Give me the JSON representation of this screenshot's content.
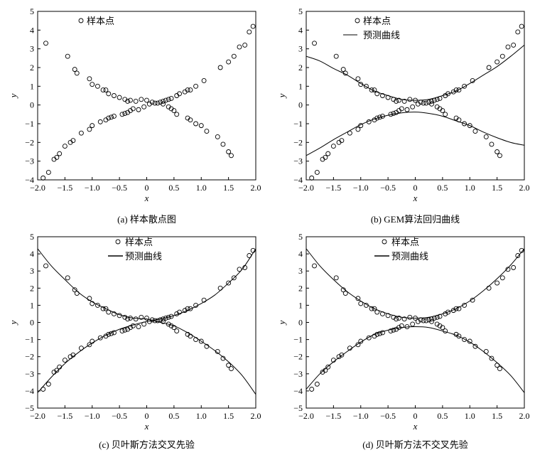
{
  "chart_data": [
    {
      "type": "scatter",
      "caption": "(a) 样本散点图",
      "xlabel": "x",
      "ylabel": "y",
      "xlim": [
        -2,
        2
      ],
      "ylim": [
        -4,
        5
      ],
      "xticks": [
        "−2.0",
        "−1.5",
        "−1.0",
        "−0.5",
        "0",
        "0.5",
        "1.0",
        "1.5",
        "2.0"
      ],
      "yticks": [
        "−4",
        "−3",
        "−2",
        "−1",
        "0",
        "1",
        "2",
        "3",
        "4",
        "5"
      ],
      "grid": false,
      "legend_position": "top-left",
      "legend": [
        {
          "name": "样本点",
          "marker": "circle"
        }
      ],
      "series": [
        {
          "name": "样本点",
          "style": "points",
          "x": [
            -1.9,
            -1.8,
            -1.7,
            -1.65,
            -1.6,
            -1.5,
            -1.4,
            -1.35,
            -1.2,
            -1.05,
            -1.0,
            -0.85,
            -0.75,
            -0.7,
            -0.65,
            -0.6,
            -0.45,
            -0.4,
            -0.35,
            -0.3,
            -0.25,
            -0.15,
            -0.05,
            0.05,
            0.15,
            0.25,
            0.3,
            0.35,
            0.4,
            0.45,
            0.55,
            0.6,
            0.7,
            0.75,
            0.8,
            0.9,
            1.05,
            1.35,
            1.5,
            1.6,
            1.7,
            1.8,
            1.88,
            1.95,
            -1.85,
            -1.45,
            -1.32,
            -1.28,
            -1.05,
            -1.0,
            -0.9,
            -0.8,
            -0.75,
            -0.7,
            -0.6,
            -0.5,
            -0.4,
            -0.35,
            -0.3,
            -0.2,
            -0.1,
            0.0,
            0.1,
            0.2,
            0.3,
            0.4,
            0.45,
            0.5,
            0.55,
            0.75,
            0.8,
            0.9,
            1.0,
            1.1,
            1.3,
            1.4,
            1.5,
            1.55
          ],
          "y": [
            -3.9,
            -3.6,
            -2.9,
            -2.8,
            -2.6,
            -2.2,
            -2.0,
            -1.9,
            -1.5,
            -1.3,
            -1.1,
            -0.9,
            -0.8,
            -0.7,
            -0.65,
            -0.6,
            -0.5,
            -0.45,
            -0.4,
            -0.3,
            -0.2,
            -0.25,
            -0.1,
            0.05,
            0.1,
            0.15,
            0.2,
            0.25,
            0.3,
            0.35,
            0.5,
            0.6,
            0.7,
            0.8,
            0.8,
            1.0,
            1.3,
            2.0,
            2.3,
            2.6,
            3.1,
            3.2,
            3.9,
            4.2,
            3.3,
            2.6,
            1.9,
            1.7,
            1.4,
            1.1,
            1.0,
            0.8,
            0.8,
            0.6,
            0.5,
            0.4,
            0.3,
            0.2,
            0.25,
            0.2,
            0.3,
            0.25,
            0.15,
            0.1,
            0.05,
            -0.1,
            -0.2,
            -0.3,
            -0.5,
            -0.7,
            -0.8,
            -1.0,
            -1.1,
            -1.4,
            -1.7,
            -2.1,
            -2.5,
            -2.7
          ]
        }
      ]
    },
    {
      "type": "scatter",
      "caption": "(b) GEM算法回归曲线",
      "xlabel": "x",
      "ylabel": "y",
      "xlim": [
        -2,
        2
      ],
      "ylim": [
        -4,
        5
      ],
      "xticks": [
        "−2.0",
        "−1.5",
        "−1.0",
        "−0.5",
        "0",
        "0.5",
        "1.0",
        "1.5",
        "2.0"
      ],
      "yticks": [
        "−4",
        "−3",
        "−2",
        "−1",
        "0",
        "1",
        "2",
        "3",
        "4",
        "5"
      ],
      "grid": false,
      "legend_position": "top-left",
      "legend": [
        {
          "name": "样本点",
          "marker": "circle"
        },
        {
          "name": "预测曲线",
          "marker": "line"
        }
      ],
      "series": [
        {
          "name": "样本点",
          "style": "points",
          "x": [
            -1.9,
            -1.8,
            -1.7,
            -1.65,
            -1.6,
            -1.5,
            -1.4,
            -1.35,
            -1.2,
            -1.05,
            -1.0,
            -0.85,
            -0.75,
            -0.7,
            -0.65,
            -0.6,
            -0.45,
            -0.4,
            -0.35,
            -0.3,
            -0.25,
            -0.15,
            -0.05,
            0.05,
            0.15,
            0.25,
            0.3,
            0.35,
            0.4,
            0.45,
            0.55,
            0.6,
            0.7,
            0.75,
            0.8,
            0.9,
            1.05,
            1.35,
            1.5,
            1.6,
            1.7,
            1.8,
            1.88,
            1.95,
            -1.85,
            -1.45,
            -1.32,
            -1.28,
            -1.05,
            -1.0,
            -0.9,
            -0.8,
            -0.75,
            -0.7,
            -0.6,
            -0.5,
            -0.4,
            -0.35,
            -0.3,
            -0.2,
            -0.1,
            0.0,
            0.1,
            0.2,
            0.3,
            0.4,
            0.45,
            0.5,
            0.55,
            0.75,
            0.8,
            0.9,
            1.0,
            1.1,
            1.3,
            1.4,
            1.5,
            1.55
          ],
          "y": [
            -3.9,
            -3.6,
            -2.9,
            -2.8,
            -2.6,
            -2.2,
            -2.0,
            -1.9,
            -1.5,
            -1.3,
            -1.1,
            -0.9,
            -0.8,
            -0.7,
            -0.65,
            -0.6,
            -0.5,
            -0.45,
            -0.4,
            -0.3,
            -0.2,
            -0.25,
            -0.1,
            0.05,
            0.1,
            0.15,
            0.2,
            0.25,
            0.3,
            0.35,
            0.5,
            0.6,
            0.7,
            0.8,
            0.8,
            1.0,
            1.3,
            2.0,
            2.3,
            2.6,
            3.1,
            3.2,
            3.9,
            4.2,
            3.3,
            2.6,
            1.9,
            1.7,
            1.4,
            1.1,
            1.0,
            0.8,
            0.8,
            0.6,
            0.5,
            0.4,
            0.3,
            0.2,
            0.25,
            0.2,
            0.3,
            0.25,
            0.15,
            0.1,
            0.05,
            -0.1,
            -0.2,
            -0.3,
            -0.5,
            -0.7,
            -0.8,
            -1.0,
            -1.1,
            -1.4,
            -1.7,
            -2.1,
            -2.5,
            -2.7
          ]
        },
        {
          "name": "预测曲线",
          "style": "line",
          "x": [
            -2.0,
            -1.75,
            -1.5,
            -1.25,
            -1.0,
            -0.75,
            -0.5,
            -0.25,
            0.0,
            0.25,
            0.5,
            0.75,
            1.0,
            1.25,
            1.5,
            1.75,
            2.0
          ],
          "y": [
            2.6,
            2.35,
            1.95,
            1.6,
            1.15,
            0.75,
            0.5,
            0.3,
            0.25,
            0.3,
            0.5,
            0.75,
            1.15,
            1.6,
            2.05,
            2.6,
            3.2
          ]
        },
        {
          "name": "预测曲线",
          "style": "line",
          "x": [
            -2.0,
            -1.75,
            -1.5,
            -1.25,
            -1.0,
            -0.75,
            -0.5,
            -0.25,
            0.0,
            0.25,
            0.5,
            0.75,
            1.0,
            1.25,
            1.5,
            1.75,
            2.0
          ],
          "y": [
            -2.7,
            -2.3,
            -1.85,
            -1.45,
            -1.05,
            -0.75,
            -0.55,
            -0.42,
            -0.38,
            -0.45,
            -0.6,
            -0.85,
            -1.1,
            -1.45,
            -1.75,
            -2.0,
            -2.15
          ]
        }
      ]
    },
    {
      "type": "scatter",
      "caption": "(c) 贝叶斯方法交叉先验",
      "xlabel": "x",
      "ylabel": "y",
      "xlim": [
        -2,
        2
      ],
      "ylim": [
        -5,
        5
      ],
      "xticks": [
        "−2.0",
        "−1.5",
        "−1.0",
        "−0.5",
        "0",
        "0.5",
        "1.0",
        "1.5",
        "2.0"
      ],
      "yticks": [
        "−5",
        "−4",
        "−3",
        "−2",
        "−1",
        "0",
        "1",
        "2",
        "3",
        "4",
        "5"
      ],
      "grid": false,
      "legend_position": "top-center",
      "legend": [
        {
          "name": "样本点",
          "marker": "circle"
        },
        {
          "name": "预测曲线",
          "marker": "line"
        }
      ],
      "series": [
        {
          "name": "样本点",
          "style": "points",
          "x": [
            -1.9,
            -1.8,
            -1.7,
            -1.65,
            -1.6,
            -1.5,
            -1.4,
            -1.35,
            -1.2,
            -1.05,
            -1.0,
            -0.85,
            -0.75,
            -0.7,
            -0.65,
            -0.6,
            -0.45,
            -0.4,
            -0.35,
            -0.3,
            -0.25,
            -0.15,
            -0.05,
            0.05,
            0.15,
            0.25,
            0.3,
            0.35,
            0.4,
            0.45,
            0.55,
            0.6,
            0.7,
            0.75,
            0.8,
            0.9,
            1.05,
            1.35,
            1.5,
            1.6,
            1.7,
            1.8,
            1.88,
            1.95,
            -1.85,
            -1.45,
            -1.32,
            -1.28,
            -1.05,
            -1.0,
            -0.9,
            -0.8,
            -0.75,
            -0.7,
            -0.6,
            -0.5,
            -0.4,
            -0.35,
            -0.3,
            -0.2,
            -0.1,
            0.0,
            0.1,
            0.2,
            0.3,
            0.4,
            0.45,
            0.5,
            0.55,
            0.75,
            0.8,
            0.9,
            1.0,
            1.1,
            1.3,
            1.4,
            1.5,
            1.55
          ],
          "y": [
            -3.9,
            -3.6,
            -2.9,
            -2.8,
            -2.6,
            -2.2,
            -2.0,
            -1.9,
            -1.5,
            -1.3,
            -1.1,
            -0.9,
            -0.8,
            -0.7,
            -0.65,
            -0.6,
            -0.5,
            -0.45,
            -0.4,
            -0.3,
            -0.2,
            -0.25,
            -0.1,
            0.05,
            0.1,
            0.15,
            0.2,
            0.25,
            0.3,
            0.35,
            0.5,
            0.6,
            0.7,
            0.8,
            0.8,
            1.0,
            1.3,
            2.0,
            2.3,
            2.6,
            3.1,
            3.2,
            3.9,
            4.2,
            3.3,
            2.6,
            1.9,
            1.7,
            1.4,
            1.1,
            1.0,
            0.8,
            0.8,
            0.6,
            0.5,
            0.4,
            0.3,
            0.2,
            0.25,
            0.2,
            0.3,
            0.25,
            0.15,
            0.1,
            0.05,
            -0.1,
            -0.2,
            -0.3,
            -0.5,
            -0.7,
            -0.8,
            -1.0,
            -1.1,
            -1.4,
            -1.7,
            -2.1,
            -2.5,
            -2.7
          ]
        },
        {
          "name": "预测曲线",
          "style": "line",
          "x": [
            -2.0,
            -1.75,
            -1.5,
            -1.25,
            -1.0,
            -0.75,
            -0.5,
            -0.25,
            0.0,
            0.25,
            0.5,
            0.75,
            1.0,
            1.25,
            1.5,
            1.75,
            2.0
          ],
          "y": [
            4.3,
            3.3,
            2.5,
            1.75,
            1.2,
            0.8,
            0.45,
            0.25,
            0.2,
            0.0,
            -0.2,
            -0.6,
            -1.1,
            -1.65,
            -2.3,
            -3.1,
            -4.2
          ]
        },
        {
          "name": "预测曲线",
          "style": "line",
          "x": [
            -2.0,
            -1.75,
            -1.5,
            -1.25,
            -1.0,
            -0.75,
            -0.5,
            -0.25,
            0.0,
            0.25,
            0.5,
            0.75,
            1.0,
            1.25,
            1.5,
            1.75,
            2.0
          ],
          "y": [
            -4.1,
            -3.2,
            -2.4,
            -1.75,
            -1.2,
            -0.75,
            -0.4,
            -0.15,
            0.05,
            0.2,
            0.4,
            0.7,
            1.1,
            1.6,
            2.3,
            3.1,
            4.3
          ]
        }
      ]
    },
    {
      "type": "scatter",
      "caption": "(d) 贝叶斯方法不交叉先验",
      "xlabel": "x",
      "ylabel": "y",
      "xlim": [
        -2,
        2
      ],
      "ylim": [
        -5,
        5
      ],
      "xticks": [
        "−2.0",
        "−1.5",
        "−1.0",
        "−0.5",
        "0",
        "0.5",
        "1.0",
        "1.5",
        "2.0"
      ],
      "yticks": [
        "−5",
        "−4",
        "−3",
        "−2",
        "−1",
        "0",
        "1",
        "2",
        "3",
        "4",
        "5"
      ],
      "grid": false,
      "legend_position": "top-center",
      "legend": [
        {
          "name": "样本点",
          "marker": "circle"
        },
        {
          "name": "预测曲线",
          "marker": "line"
        }
      ],
      "series": [
        {
          "name": "样本点",
          "style": "points",
          "x": [
            -1.9,
            -1.8,
            -1.7,
            -1.65,
            -1.6,
            -1.5,
            -1.4,
            -1.35,
            -1.2,
            -1.05,
            -1.0,
            -0.85,
            -0.75,
            -0.7,
            -0.65,
            -0.6,
            -0.45,
            -0.4,
            -0.35,
            -0.3,
            -0.25,
            -0.15,
            -0.05,
            0.05,
            0.15,
            0.25,
            0.3,
            0.35,
            0.4,
            0.45,
            0.55,
            0.6,
            0.7,
            0.75,
            0.8,
            0.9,
            1.05,
            1.35,
            1.5,
            1.6,
            1.7,
            1.8,
            1.88,
            1.95,
            -1.85,
            -1.45,
            -1.32,
            -1.28,
            -1.05,
            -1.0,
            -0.9,
            -0.8,
            -0.75,
            -0.7,
            -0.6,
            -0.5,
            -0.4,
            -0.35,
            -0.3,
            -0.2,
            -0.1,
            0.0,
            0.1,
            0.2,
            0.3,
            0.4,
            0.45,
            0.5,
            0.55,
            0.75,
            0.8,
            0.9,
            1.0,
            1.1,
            1.3,
            1.4,
            1.5,
            1.55
          ],
          "y": [
            -3.9,
            -3.6,
            -2.9,
            -2.8,
            -2.6,
            -2.2,
            -2.0,
            -1.9,
            -1.5,
            -1.3,
            -1.1,
            -0.9,
            -0.8,
            -0.7,
            -0.65,
            -0.6,
            -0.5,
            -0.45,
            -0.4,
            -0.3,
            -0.2,
            -0.25,
            -0.1,
            0.05,
            0.1,
            0.15,
            0.2,
            0.25,
            0.3,
            0.35,
            0.5,
            0.6,
            0.7,
            0.8,
            0.8,
            1.0,
            1.3,
            2.0,
            2.3,
            2.6,
            3.1,
            3.2,
            3.9,
            4.2,
            3.3,
            2.6,
            1.9,
            1.7,
            1.4,
            1.1,
            1.0,
            0.8,
            0.8,
            0.6,
            0.5,
            0.4,
            0.3,
            0.2,
            0.25,
            0.2,
            0.3,
            0.25,
            0.15,
            0.1,
            0.05,
            -0.1,
            -0.2,
            -0.3,
            -0.5,
            -0.7,
            -0.8,
            -1.0,
            -1.1,
            -1.4,
            -1.7,
            -2.1,
            -2.5,
            -2.7
          ]
        },
        {
          "name": "预测曲线",
          "style": "line",
          "x": [
            -2.0,
            -1.75,
            -1.5,
            -1.25,
            -1.0,
            -0.75,
            -0.5,
            -0.25,
            0.0,
            0.25,
            0.5,
            0.75,
            1.0,
            1.25,
            1.5,
            1.75,
            2.0
          ],
          "y": [
            4.3,
            3.3,
            2.5,
            1.8,
            1.25,
            0.8,
            0.5,
            0.3,
            0.25,
            0.3,
            0.5,
            0.8,
            1.25,
            1.85,
            2.55,
            3.35,
            4.3
          ]
        },
        {
          "name": "预测曲线",
          "style": "line",
          "x": [
            -2.0,
            -1.75,
            -1.5,
            -1.25,
            -1.0,
            -0.75,
            -0.5,
            -0.25,
            0.0,
            0.25,
            0.5,
            0.75,
            1.0,
            1.25,
            1.5,
            1.75,
            2.0
          ],
          "y": [
            -3.9,
            -3.0,
            -2.3,
            -1.7,
            -1.15,
            -0.7,
            -0.45,
            -0.3,
            -0.25,
            -0.3,
            -0.5,
            -0.75,
            -1.15,
            -1.7,
            -2.35,
            -3.1,
            -4.1
          ]
        }
      ]
    }
  ]
}
